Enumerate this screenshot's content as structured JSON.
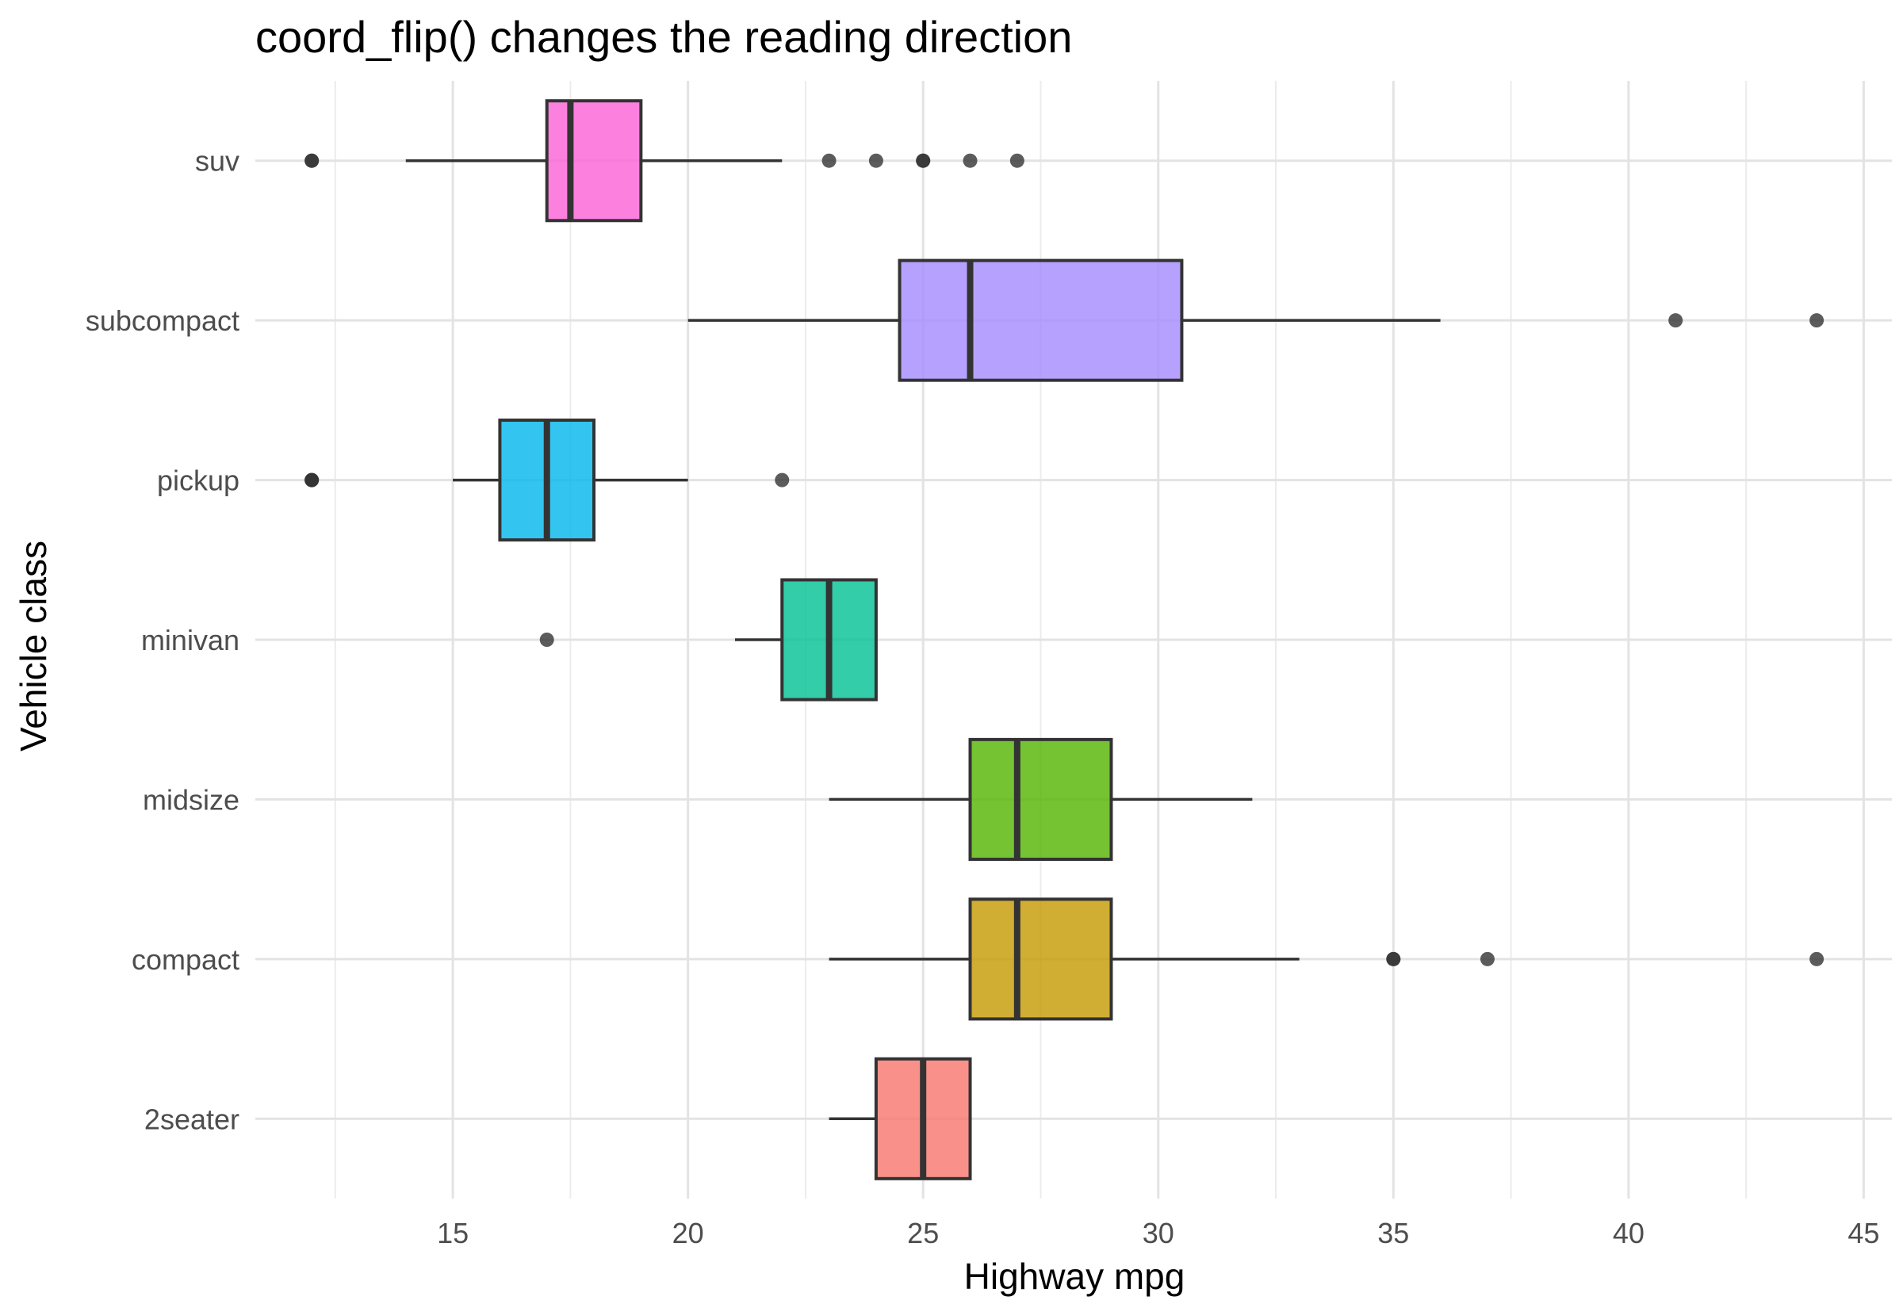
{
  "chart_data": {
    "type": "boxplot",
    "orientation": "horizontal",
    "title": "coord_flip() changes the reading direction",
    "xlabel": "Highway mpg",
    "ylabel": "Vehicle class",
    "xlim": [
      10.8,
      45.6
    ],
    "x_ticks": [
      "15",
      "20",
      "25",
      "30",
      "35",
      "40",
      "45"
    ],
    "x_tick_values": [
      15,
      20,
      25,
      30,
      35,
      40,
      45
    ],
    "grid": true,
    "legend": "none",
    "categories": [
      "2seater",
      "compact",
      "midsize",
      "minivan",
      "pickup",
      "subcompact",
      "suv"
    ],
    "series": [
      {
        "category": "2seater",
        "color": "#F8766D",
        "whisker_low": 23,
        "q1": 24,
        "median": 25,
        "q3": 26,
        "whisker_high": 26,
        "outliers": []
      },
      {
        "category": "compact",
        "color": "#C49A00",
        "whisker_low": 23,
        "q1": 26,
        "median": 27,
        "q3": 29,
        "whisker_high": 33,
        "outliers": [
          35,
          35,
          37,
          44
        ]
      },
      {
        "category": "midsize",
        "color": "#53B400",
        "whisker_low": 23,
        "q1": 26,
        "median": 27,
        "q3": 29,
        "whisker_high": 32,
        "outliers": []
      },
      {
        "category": "minivan",
        "color": "#00C094",
        "whisker_low": 21,
        "q1": 22,
        "median": 23,
        "q3": 24,
        "whisker_high": 24,
        "outliers": [
          17
        ]
      },
      {
        "category": "pickup",
        "color": "#00B6EB",
        "whisker_low": 15,
        "q1": 16,
        "median": 17,
        "q3": 18,
        "whisker_high": 20,
        "outliers": [
          12,
          12,
          12,
          22
        ]
      },
      {
        "category": "subcompact",
        "color": "#A58AFF",
        "whisker_low": 20,
        "q1": 24.5,
        "median": 26,
        "q3": 30.5,
        "whisker_high": 36,
        "outliers": [
          41,
          44
        ]
      },
      {
        "category": "suv",
        "color": "#FB61D7",
        "whisker_low": 14,
        "q1": 17,
        "median": 17.5,
        "q3": 19,
        "whisker_high": 22,
        "outliers": [
          12,
          12,
          23,
          24,
          25,
          25,
          26,
          27
        ]
      }
    ]
  }
}
